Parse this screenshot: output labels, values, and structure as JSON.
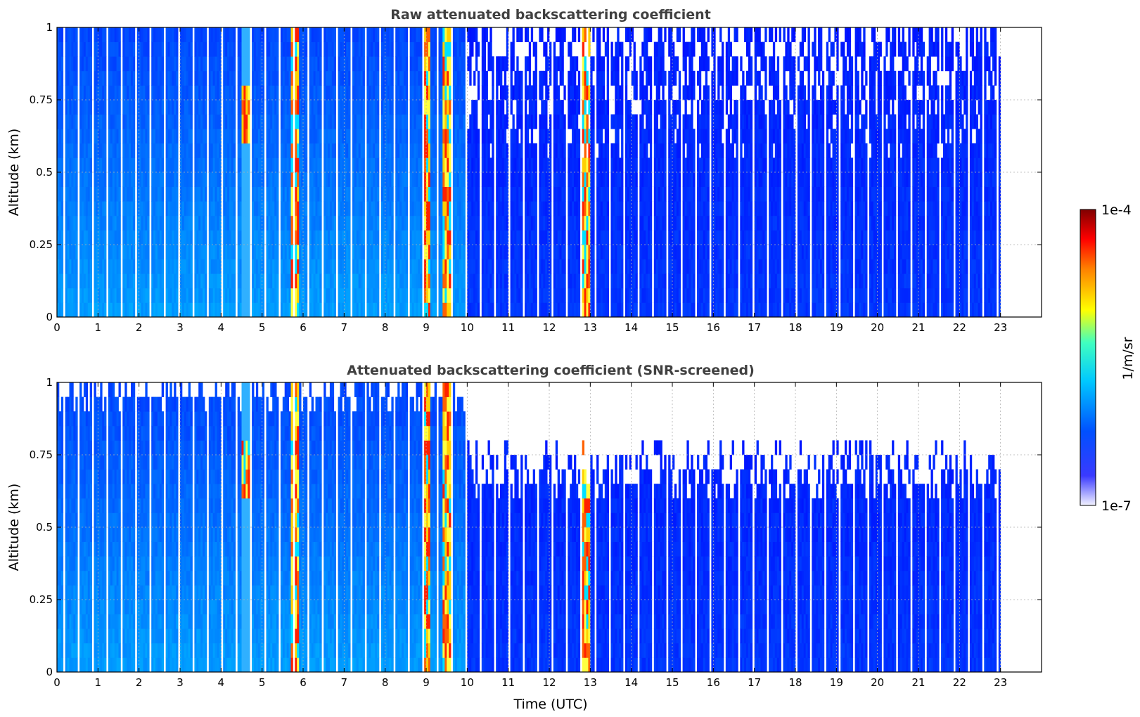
{
  "chart_data": [
    {
      "type": "heatmap",
      "title": "Raw attenuated backscattering coefficient",
      "xlabel": "",
      "ylabel": "Altitude (km)",
      "xlim": [
        0,
        24
      ],
      "ylim": [
        0,
        1
      ],
      "xticks": [
        "0",
        "1",
        "2",
        "3",
        "4",
        "5",
        "6",
        "7",
        "8",
        "9",
        "10",
        "11",
        "12",
        "13",
        "14",
        "15",
        "16",
        "17",
        "18",
        "19",
        "20",
        "21",
        "22",
        "23"
      ],
      "yticks": [
        "0",
        "0.25",
        "0.5",
        "0.75",
        "1"
      ],
      "grid": true,
      "data_extent_hours": [
        0,
        23
      ],
      "background_signal_level": "blue (~1e-6 to 1e-5 1/m/sr), higher near surface and before 10 UTC",
      "strong_features": [
        {
          "time_utc": 4.6,
          "description": "aerosol/cloud layer, red-dark red, altitude 0.55-0.8 km"
        },
        {
          "time_utc": 5.8,
          "description": "strong column, red, surface to 1 km"
        },
        {
          "time_utc": 9.0,
          "description": "strong columns, red-yellow, surface to 1 km"
        },
        {
          "time_utc": 9.5,
          "description": "strong columns, yellow-orange, surface to 1 km"
        },
        {
          "time_utc": 12.9,
          "description": "strong columns, red-cyan, surface to 1 km"
        }
      ],
      "noise": "speckled white (below scale) values above ~0.5 km after 10 UTC"
    },
    {
      "type": "heatmap",
      "title": "Attenuated backscattering coefficient (SNR-screened)",
      "xlabel": "Time (UTC)",
      "ylabel": "Altitude (km)",
      "xlim": [
        0,
        24
      ],
      "ylim": [
        0,
        1
      ],
      "xticks": [
        "0",
        "1",
        "2",
        "3",
        "4",
        "5",
        "6",
        "7",
        "8",
        "9",
        "10",
        "11",
        "12",
        "13",
        "14",
        "15",
        "16",
        "17",
        "18",
        "19",
        "20",
        "21",
        "22",
        "23"
      ],
      "yticks": [
        "0",
        "0.25",
        "0.5",
        "0.75",
        "1"
      ],
      "grid": true,
      "data_extent_hours": [
        0,
        23
      ],
      "screened_out": "white regions above ~0.5-0.8 km where signal-to-noise is low, mostly after 10 UTC"
    }
  ],
  "colorbar": {
    "label": "1/m/sr",
    "max_label": "1e-4",
    "min_label": "1e-7",
    "scale": "log",
    "colormap": [
      "#ffffff",
      "#0000ff",
      "#00ffff",
      "#ffff00",
      "#ff0000",
      "#800000"
    ]
  }
}
